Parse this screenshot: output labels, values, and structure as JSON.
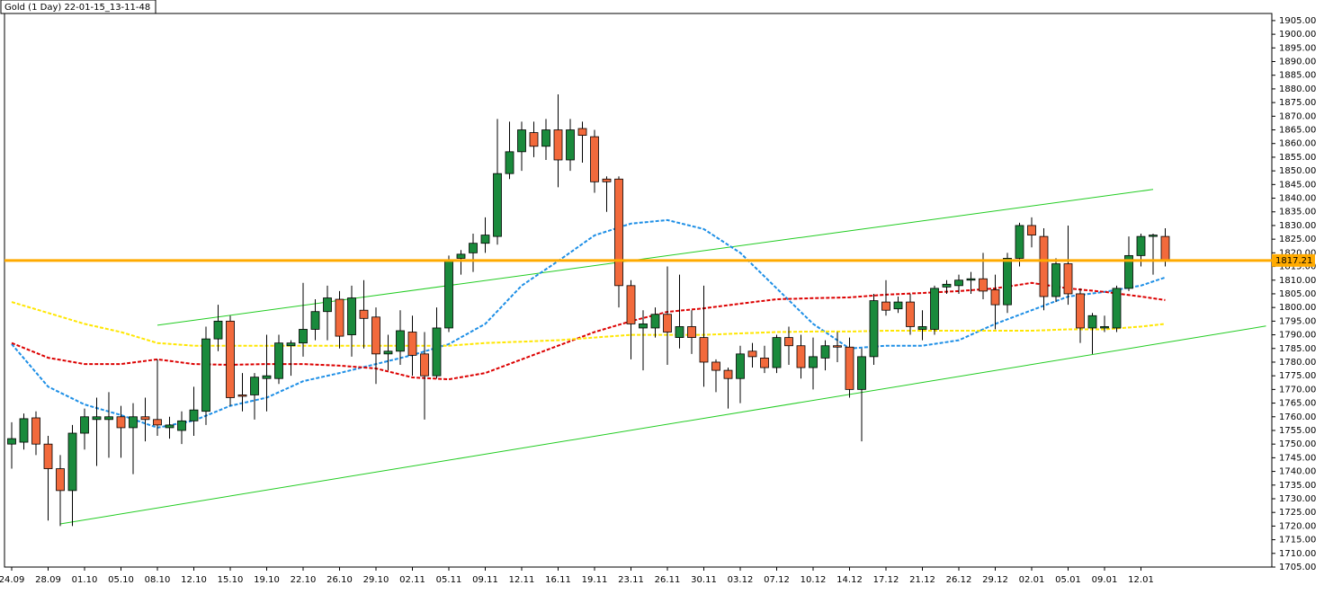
{
  "chart_data": {
    "type": "candlestick",
    "title": "Gold (1 Day) 22-01-15_13-11-48",
    "categories": [
      "24.09",
      null,
      null,
      "28.09",
      null,
      null,
      "01.10",
      null,
      null,
      "05.10",
      null,
      null,
      "08.10",
      null,
      null,
      "12.10",
      null,
      null,
      "15.10",
      null,
      null,
      "19.10",
      null,
      null,
      "22.10",
      null,
      null,
      "26.10",
      null,
      null,
      "29.10",
      null,
      null,
      "02.11",
      null,
      null,
      "05.11",
      null,
      null,
      "09.11",
      null,
      null,
      "12.11",
      null,
      null,
      "16.11",
      null,
      null,
      "19.11",
      null,
      null,
      "23.11",
      null,
      null,
      "26.11",
      null,
      null,
      "30.11",
      null,
      null,
      "03.12",
      null,
      null,
      "07.12",
      null,
      null,
      "10.12",
      null,
      null,
      "14.12",
      null,
      null,
      "17.12",
      null,
      null,
      "21.12",
      null,
      null,
      "26.12",
      null,
      null,
      "29.12",
      null,
      null,
      "02.01",
      null,
      null,
      "05.01",
      null,
      null,
      "09.01",
      null,
      null,
      "12.01",
      null,
      null
    ],
    "open": [
      1750,
      1750.7,
      1759.6,
      1750,
      1741,
      1733,
      1754,
      1759,
      1759,
      1760,
      1756,
      1760,
      1759,
      1756,
      1755,
      1758.5,
      1762,
      1788.5,
      1795,
      1768,
      1768,
      1774,
      1774,
      1786,
      1787,
      1792,
      1798.5,
      1803,
      1790,
      1799,
      1796.5,
      1783,
      1784,
      1791,
      1783,
      1775,
      1792.5,
      1818,
      1820,
      1823.5,
      1826,
      1849,
      1857,
      1864,
      1859,
      1865,
      1854,
      1865.5,
      1862.5,
      1847,
      1847,
      1808,
      1792.5,
      1792.5,
      1797.5,
      1789,
      1793,
      1789,
      1780,
      1777,
      1774,
      1784,
      1781.5,
      1778,
      1789,
      1786,
      1778,
      1781.5,
      1786,
      1785.5,
      1770,
      1782,
      1802,
      1799.5,
      1802,
      1792,
      1792,
      1807.5,
      1808,
      1810,
      1810.5,
      1806.5,
      1801,
      1818,
      1830,
      1826,
      1804,
      1816,
      1805,
      1792.5,
      1792.5,
      1792.5,
      1807,
      1819,
      1826,
      1826
    ],
    "high": [
      1758,
      1761.2,
      1762,
      1753,
      1746,
      1757,
      1763,
      1767,
      1769,
      1764,
      1765,
      1767,
      1781,
      1760,
      1762,
      1771,
      1793,
      1801,
      1797,
      1776,
      1776,
      1790,
      1790,
      1788,
      1809,
      1803,
      1808,
      1806,
      1808,
      1810,
      1800,
      1790,
      1799,
      1797,
      1791,
      1800,
      1819,
      1821,
      1827,
      1833,
      1869,
      1868,
      1868,
      1868,
      1869,
      1878,
      1869,
      1868,
      1865,
      1848,
      1848,
      1810,
      1799,
      1800,
      1815,
      1812,
      1799,
      1808,
      1781,
      1778,
      1786,
      1787,
      1786,
      1790,
      1793,
      1790,
      1789,
      1788,
      1791,
      1789,
      1785,
      1805,
      1810,
      1804,
      1805,
      1799,
      1808,
      1810,
      1812,
      1813,
      1820,
      1812,
      1820,
      1831,
      1833,
      1829,
      1818,
      1830,
      1807,
      1798,
      1797,
      1808,
      1826,
      1827,
      1827,
      1829
    ],
    "low": [
      1741,
      1748,
      1746,
      1722,
      1720,
      1720,
      1748,
      1742,
      1745,
      1745,
      1739,
      1751,
      1753,
      1752,
      1750,
      1753,
      1757,
      1784,
      1764,
      1762,
      1759,
      1762,
      1772,
      1775,
      1782,
      1788,
      1788,
      1785,
      1782,
      1785,
      1772,
      1777,
      1779,
      1775,
      1759,
      1774,
      1791,
      1812,
      1813,
      1820,
      1823,
      1847,
      1850,
      1855,
      1854,
      1844,
      1850,
      1853,
      1842,
      1835,
      1800,
      1781,
      1777,
      1789,
      1779,
      1785,
      1783,
      1771,
      1769,
      1763,
      1765,
      1778,
      1776,
      1776,
      1779,
      1774,
      1770,
      1777,
      1780,
      1767,
      1751,
      1779,
      1797,
      1798,
      1790,
      1788,
      1790,
      1805,
      1805,
      1805,
      1803,
      1792,
      1798,
      1815,
      1822,
      1799,
      1802,
      1801,
      1787,
      1783,
      1791,
      1791,
      1806,
      1815,
      1812,
      1815
    ],
    "close": [
      1752,
      1759.3,
      1750,
      1741,
      1733,
      1754,
      1760,
      1760,
      1760,
      1756,
      1760,
      1759,
      1757,
      1757,
      1758.5,
      1762.5,
      1788.5,
      1795,
      1767,
      1767.5,
      1774.5,
      1775,
      1787,
      1787,
      1792,
      1798.5,
      1803.5,
      1789.5,
      1803.5,
      1796,
      1783,
      1784,
      1791.5,
      1782.5,
      1775,
      1792.5,
      1817,
      1819.5,
      1823.5,
      1826.5,
      1849,
      1857,
      1865,
      1859,
      1865,
      1854,
      1865,
      1863,
      1846,
      1846,
      1808,
      1794,
      1794,
      1797.5,
      1791,
      1793,
      1789,
      1780,
      1777,
      1774,
      1783,
      1782,
      1778,
      1789,
      1786,
      1778,
      1782,
      1786,
      1785.5,
      1770,
      1782,
      1802.5,
      1799,
      1802,
      1793,
      1793,
      1807,
      1808.5,
      1810,
      1810.5,
      1806,
      1801,
      1818,
      1830,
      1826.5,
      1804,
      1816,
      1805,
      1792.5,
      1797,
      1793,
      1807,
      1819,
      1826,
      1826.5,
      1817.2
    ],
    "up_color": "#1a8a3c",
    "down_color": "#f26a3c",
    "ma_lines": [
      {
        "color": "#1e8fe6",
        "x": [
          0,
          3,
          6,
          9,
          12,
          15,
          18,
          21,
          24,
          27,
          30,
          33,
          36,
          39,
          42,
          45,
          48,
          51,
          54,
          57,
          60,
          63,
          66,
          69,
          72,
          75,
          78,
          81,
          84,
          87,
          90,
          93,
          95
        ],
        "values": [
          1786.6,
          1771,
          1764.5,
          1760.6,
          1756,
          1758.6,
          1764,
          1767,
          1773,
          1776,
          1779.3,
          1782.6,
          1786.6,
          1794,
          1808,
          1817,
          1826.4,
          1830.7,
          1832,
          1828.7,
          1820,
          1807,
          1794,
          1785,
          1786,
          1786,
          1788,
          1794,
          1799,
          1804,
          1805.7,
          1808,
          1811
        ]
      },
      {
        "color": "#dc0000",
        "x": [
          0,
          3,
          6,
          9,
          12,
          15,
          18,
          21,
          24,
          27,
          30,
          33,
          36,
          39,
          42,
          45,
          48,
          51,
          54,
          57,
          60,
          63,
          66,
          69,
          72,
          75,
          78,
          81,
          84,
          87,
          90,
          93,
          95
        ],
        "values": [
          1787,
          1781.6,
          1779.3,
          1779.3,
          1781,
          1779.3,
          1779,
          1779.3,
          1779.3,
          1778.7,
          1777.7,
          1774.4,
          1773.7,
          1776,
          1781,
          1786,
          1791,
          1795,
          1798.4,
          1799.7,
          1801.4,
          1803,
          1803.4,
          1803.7,
          1804.7,
          1805.3,
          1806,
          1807,
          1809,
          1807,
          1805.7,
          1804,
          1802.7
        ]
      },
      {
        "color": "#ffe600",
        "x": [
          0,
          3,
          6,
          9,
          12,
          15,
          18,
          21,
          24,
          27,
          30,
          33,
          36,
          39,
          42,
          45,
          48,
          51,
          54,
          57,
          60,
          63,
          66,
          69,
          72,
          75,
          78,
          81,
          84,
          87,
          90,
          93,
          95
        ],
        "values": [
          1802,
          1798,
          1794,
          1791,
          1787,
          1786,
          1786,
          1786,
          1786,
          1786,
          1786,
          1786,
          1786,
          1787,
          1787.5,
          1788,
          1789,
          1790,
          1790,
          1790,
          1790.5,
          1791,
          1791.2,
          1791.2,
          1791.5,
          1791.5,
          1791.5,
          1791.5,
          1791.5,
          1792,
          1792,
          1793,
          1794
        ]
      }
    ],
    "trend_lines": [
      {
        "color": "#22cc22",
        "x": [
          12,
          94
        ],
        "values": [
          1793.5,
          1843.2
        ]
      },
      {
        "color": "#22cc22",
        "x": [
          4,
          103.3
        ],
        "values": [
          1720.8,
          1793.2
        ]
      }
    ],
    "current_price": 1817.21,
    "current_price_color": "#ffaa00",
    "ylim": [
      1705,
      1907.6
    ],
    "yticks": [
      {
        "value": 1705,
        "label": "1705.00"
      },
      {
        "value": 1710,
        "label": "1710.00"
      },
      {
        "value": 1715,
        "label": "1715.00"
      },
      {
        "value": 1720,
        "label": "1720.00"
      },
      {
        "value": 1725,
        "label": "1725.00"
      },
      {
        "value": 1730,
        "label": "1730.00"
      },
      {
        "value": 1735,
        "label": "1735.00"
      },
      {
        "value": 1740,
        "label": "1740.00"
      },
      {
        "value": 1745,
        "label": "1745.00"
      },
      {
        "value": 1750,
        "label": "1750.00"
      },
      {
        "value": 1755,
        "label": "1755.00"
      },
      {
        "value": 1760,
        "label": "1760.00"
      },
      {
        "value": 1765,
        "label": "1765.00"
      },
      {
        "value": 1770,
        "label": "1770.00"
      },
      {
        "value": 1775,
        "label": "1775.00"
      },
      {
        "value": 1780,
        "label": "1780.00"
      },
      {
        "value": 1785,
        "label": "1785.00"
      },
      {
        "value": 1790,
        "label": "1790.00"
      },
      {
        "value": 1795,
        "label": "1795.00"
      },
      {
        "value": 1800,
        "label": "1800.00"
      },
      {
        "value": 1805,
        "label": "1805.00"
      },
      {
        "value": 1810,
        "label": "1810.00"
      },
      {
        "value": 1815,
        "label": "1815.00"
      },
      {
        "value": 1820,
        "label": "1820.00"
      },
      {
        "value": 1825,
        "label": "1825.00"
      },
      {
        "value": 1830,
        "label": "1830.00"
      },
      {
        "value": 1835,
        "label": "1835.00"
      },
      {
        "value": 1840,
        "label": "1840.00"
      },
      {
        "value": 1845,
        "label": "1845.00"
      },
      {
        "value": 1850,
        "label": "1850.00"
      },
      {
        "value": 1855,
        "label": "1855.00"
      },
      {
        "value": 1860,
        "label": "1860.00"
      },
      {
        "value": 1865,
        "label": "1865.00"
      },
      {
        "value": 1870,
        "label": "1870.00"
      },
      {
        "value": 1875,
        "label": "1875.00"
      },
      {
        "value": 1880,
        "label": "1880.00"
      },
      {
        "value": 1885,
        "label": "1885.00"
      },
      {
        "value": 1890,
        "label": "1890.00"
      },
      {
        "value": 1895,
        "label": "1895.00"
      },
      {
        "value": 1900,
        "label": "1900.00"
      },
      {
        "value": 1905,
        "label": "1905.00"
      }
    ],
    "grid": false
  }
}
